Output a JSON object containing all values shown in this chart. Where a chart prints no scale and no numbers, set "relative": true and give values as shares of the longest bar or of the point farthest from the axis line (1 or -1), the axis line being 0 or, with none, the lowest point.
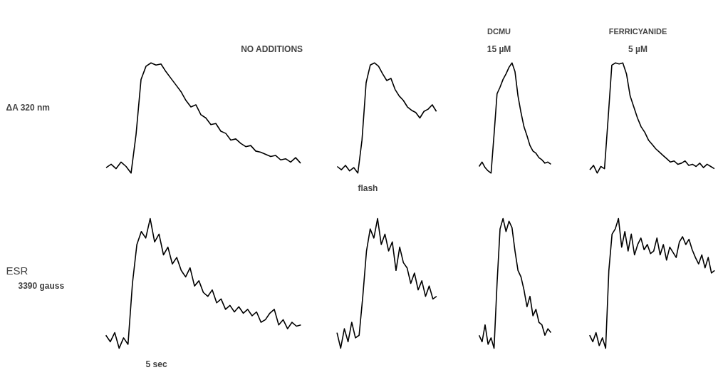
{
  "chart_data": [
    {
      "type": "line",
      "title": "NO ADDITIONS",
      "ylabel": "ΔA 320 nm",
      "relative": true,
      "color": "#000000",
      "categories": [
        null,
        null,
        null,
        null,
        null,
        null,
        null,
        null,
        null,
        null,
        null,
        null,
        null,
        null,
        null,
        null,
        null,
        null,
        null,
        null,
        null,
        null,
        null,
        null,
        null,
        null,
        null,
        null,
        null,
        null,
        null,
        null,
        null,
        null,
        null,
        null,
        null,
        null,
        null,
        null
      ],
      "values": [
        0.05,
        0.08,
        0.04,
        0.1,
        0.06,
        0.0,
        0.35,
        0.85,
        0.97,
        1.0,
        0.98,
        0.99,
        0.92,
        0.86,
        0.8,
        0.74,
        0.66,
        0.6,
        0.62,
        0.53,
        0.5,
        0.44,
        0.45,
        0.38,
        0.36,
        0.3,
        0.31,
        0.27,
        0.24,
        0.25,
        0.2,
        0.19,
        0.17,
        0.15,
        0.16,
        0.12,
        0.13,
        0.1,
        0.14,
        0.09
      ]
    },
    {
      "type": "line",
      "relative": true,
      "color": "#000000",
      "annotations": [
        "flash"
      ],
      "categories": [
        null,
        null,
        null,
        null,
        null,
        null,
        null,
        null,
        null,
        null,
        null,
        null,
        null,
        null,
        null,
        null,
        null,
        null,
        null,
        null,
        null,
        null,
        null,
        null,
        null
      ],
      "values": [
        0.06,
        0.03,
        0.07,
        0.02,
        0.05,
        0.0,
        0.3,
        0.82,
        0.98,
        1.0,
        0.97,
        0.9,
        0.84,
        0.86,
        0.76,
        0.7,
        0.66,
        0.6,
        0.57,
        0.55,
        0.5,
        0.56,
        0.58,
        0.62,
        0.56
      ]
    },
    {
      "type": "line",
      "title": "DCMU",
      "subtitle": "15 µM",
      "relative": true,
      "color": "#000000",
      "categories": [
        null,
        null,
        null,
        null,
        null,
        null,
        null,
        null,
        null,
        null,
        null,
        null,
        null,
        null,
        null,
        null,
        null,
        null,
        null,
        null,
        null,
        null,
        null,
        null,
        null
      ],
      "values": [
        0.06,
        0.1,
        0.05,
        0.02,
        0.0,
        0.35,
        0.72,
        0.78,
        0.85,
        0.9,
        0.96,
        1.0,
        0.92,
        0.7,
        0.55,
        0.42,
        0.34,
        0.25,
        0.2,
        0.18,
        0.14,
        0.12,
        0.09,
        0.1,
        0.08
      ]
    },
    {
      "type": "line",
      "title": "FERRICYANIDE",
      "subtitle": "5 µM",
      "relative": true,
      "color": "#000000",
      "categories": [
        null,
        null,
        null,
        null,
        null,
        null,
        null,
        null,
        null,
        null,
        null,
        null,
        null,
        null,
        null,
        null,
        null,
        null,
        null,
        null,
        null,
        null,
        null,
        null,
        null,
        null,
        null,
        null,
        null,
        null,
        null,
        null,
        null,
        null,
        null
      ],
      "values": [
        0.03,
        0.07,
        0.0,
        0.06,
        0.04,
        0.5,
        0.98,
        1.0,
        0.99,
        1.0,
        0.9,
        0.7,
        0.6,
        0.5,
        0.42,
        0.37,
        0.3,
        0.26,
        0.22,
        0.19,
        0.16,
        0.13,
        0.1,
        0.11,
        0.08,
        0.09,
        0.11,
        0.07,
        0.08,
        0.06,
        0.09,
        0.05,
        0.08,
        0.06,
        0.04
      ]
    },
    {
      "type": "line",
      "ylabel": "ESR",
      "subtitle": "3390 gauss",
      "relative": true,
      "color": "#000000",
      "annotations": [
        "5 sec"
      ],
      "categories": [
        null,
        null,
        null,
        null,
        null,
        null,
        null,
        null,
        null,
        null,
        null,
        null,
        null,
        null,
        null,
        null,
        null,
        null,
        null,
        null,
        null,
        null,
        null,
        null,
        null,
        null,
        null,
        null,
        null,
        null,
        null,
        null,
        null,
        null,
        null,
        null,
        null,
        null,
        null,
        null,
        null,
        null,
        null,
        null,
        null
      ],
      "values": [
        0.1,
        0.05,
        0.12,
        0.0,
        0.08,
        0.03,
        0.5,
        0.8,
        0.9,
        0.85,
        1.0,
        0.82,
        0.88,
        0.72,
        0.78,
        0.65,
        0.7,
        0.6,
        0.55,
        0.62,
        0.48,
        0.52,
        0.43,
        0.4,
        0.45,
        0.35,
        0.38,
        0.3,
        0.33,
        0.28,
        0.32,
        0.27,
        0.3,
        0.25,
        0.28,
        0.2,
        0.22,
        0.27,
        0.3,
        0.18,
        0.22,
        0.15,
        0.2,
        0.17,
        0.18
      ]
    },
    {
      "type": "line",
      "relative": true,
      "color": "#000000",
      "categories": [
        null,
        null,
        null,
        null,
        null,
        null,
        null,
        null,
        null,
        null,
        null,
        null,
        null,
        null,
        null,
        null,
        null,
        null,
        null,
        null,
        null,
        null,
        null,
        null,
        null,
        null,
        null,
        null
      ],
      "values": [
        0.12,
        0.0,
        0.15,
        0.05,
        0.2,
        0.08,
        0.1,
        0.4,
        0.75,
        0.92,
        0.85,
        1.0,
        0.8,
        0.88,
        0.75,
        0.82,
        0.6,
        0.78,
        0.66,
        0.62,
        0.5,
        0.58,
        0.45,
        0.52,
        0.4,
        0.48,
        0.38,
        0.4
      ]
    },
    {
      "type": "line",
      "relative": true,
      "color": "#000000",
      "categories": [
        null,
        null,
        null,
        null,
        null,
        null,
        null,
        null,
        null,
        null,
        null,
        null,
        null,
        null,
        null,
        null,
        null,
        null,
        null,
        null,
        null,
        null,
        null,
        null,
        null
      ],
      "values": [
        0.1,
        0.05,
        0.18,
        0.03,
        0.08,
        0.0,
        0.5,
        0.92,
        1.0,
        0.9,
        0.98,
        0.93,
        0.75,
        0.6,
        0.55,
        0.45,
        0.32,
        0.4,
        0.25,
        0.3,
        0.2,
        0.18,
        0.1,
        0.15,
        0.12
      ]
    },
    {
      "type": "line",
      "relative": true,
      "color": "#000000",
      "categories": [
        null,
        null,
        null,
        null,
        null,
        null,
        null,
        null,
        null,
        null,
        null,
        null,
        null,
        null,
        null,
        null,
        null,
        null,
        null,
        null,
        null,
        null,
        null,
        null,
        null,
        null,
        null,
        null,
        null,
        null,
        null,
        null,
        null,
        null,
        null,
        null,
        null,
        null,
        null,
        null
      ],
      "values": [
        0.1,
        0.05,
        0.12,
        0.02,
        0.08,
        0.0,
        0.6,
        0.88,
        0.92,
        1.0,
        0.78,
        0.9,
        0.75,
        0.88,
        0.72,
        0.8,
        0.85,
        0.76,
        0.8,
        0.73,
        0.75,
        0.85,
        0.72,
        0.8,
        0.68,
        0.78,
        0.74,
        0.7,
        0.82,
        0.86,
        0.8,
        0.84,
        0.76,
        0.7,
        0.65,
        0.72,
        0.62,
        0.7,
        0.58,
        0.6
      ]
    }
  ]
}
